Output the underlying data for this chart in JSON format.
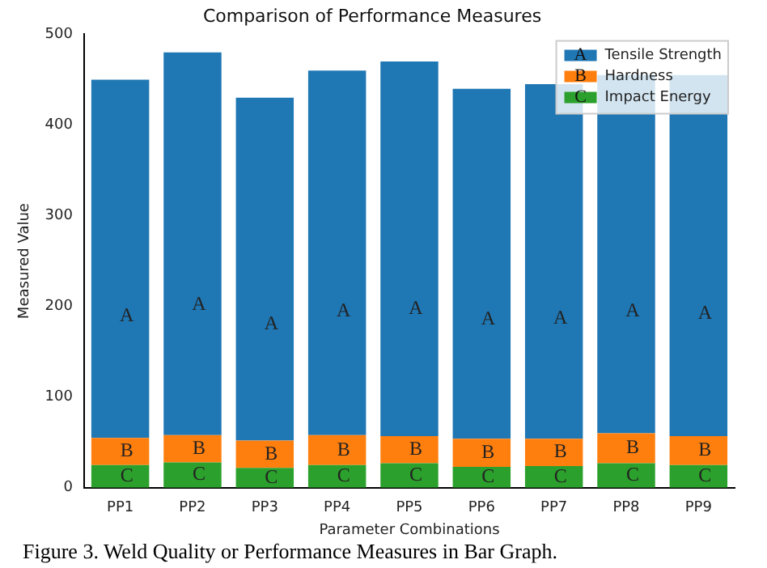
{
  "chart_data": {
    "type": "bar",
    "title": "Comparison of Performance Measures",
    "xlabel": "Parameter Combinations",
    "ylabel": "Measured Value",
    "categories": [
      "PP1",
      "PP2",
      "PP3",
      "PP4",
      "PP5",
      "PP6",
      "PP7",
      "PP8",
      "PP9"
    ],
    "stacked": true,
    "series": [
      {
        "name": "Impact Energy",
        "color": "#2ca02c",
        "values": [
          25,
          28,
          22,
          25,
          27,
          23,
          24,
          27,
          25
        ],
        "value_labels": [
          "C",
          "C",
          "C",
          "C",
          "C",
          "C",
          "C",
          "C",
          "C"
        ]
      },
      {
        "name": "Hardness",
        "color": "#ff7f0e",
        "values": [
          30,
          30,
          30,
          33,
          30,
          31,
          30,
          33,
          32
        ],
        "value_labels": [
          "B",
          "B",
          "B",
          "B",
          "B",
          "B",
          "B",
          "B",
          "B"
        ]
      },
      {
        "name": "Tensile Strength",
        "color": "#1f77b4",
        "values": [
          395,
          422,
          378,
          402,
          413,
          386,
          391,
          395,
          398
        ],
        "value_labels": [
          "A",
          "A",
          "A",
          "A",
          "A",
          "A",
          "A",
          "A",
          "A"
        ]
      }
    ],
    "ylim": [
      0,
      500
    ],
    "yticks": [
      0,
      100,
      200,
      300,
      400,
      500
    ],
    "grid": false,
    "legend": "top right",
    "annotations": [
      "Figure 3. Weld Quality or Performance Measures in Bar Graph."
    ]
  }
}
